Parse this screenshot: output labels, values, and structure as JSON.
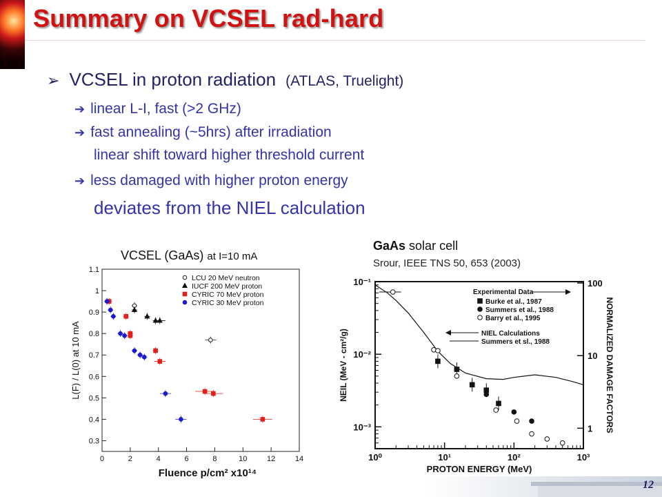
{
  "title": "Summary on VCSEL rad-hard",
  "bullets": {
    "main": "VCSEL in proton radiation",
    "main_paren": "(ATLAS, Truelight)",
    "arrow_icon": "double-right-arrow",
    "sub": [
      "linear L-I, fast (>2 GHz)",
      "fast annealing (~5hrs) after irradiation",
      "linear shift toward higher threshold current",
      "less damaged with higher proton energy",
      "deviates from the NIEL calculation"
    ]
  },
  "page_number": "12",
  "colors": {
    "title": "#d11212",
    "bullet_text": "#3333aa",
    "red_series": "#e0201a",
    "blue_series": "#1a1ad0"
  },
  "chart_data": [
    {
      "type": "scatter",
      "caption": "VCSEL (GaAs)",
      "caption_small": "at I=10 mA",
      "xlabel": "Fluence p/cm² x10¹⁴",
      "ylabel": "L(F) / L(0) at 10 mA",
      "xlim": [
        0,
        14
      ],
      "ylim": [
        0.25,
        1.1
      ],
      "xticks": [
        "0",
        "2",
        "4",
        "6",
        "8",
        "10",
        "12",
        "14"
      ],
      "yticks": [
        "0.3",
        "0.4",
        "0.5",
        "0.6",
        "0.7",
        "0.8",
        "0.9",
        "1",
        "1.1"
      ],
      "legend_position": "top-right",
      "series": [
        {
          "name": "LCU 20 MeV neutron",
          "marker": "open-circle",
          "points": [
            [
              2.3,
              0.93
            ],
            [
              7.7,
              0.77
            ]
          ]
        },
        {
          "name": "IUCF 200 MeV proton",
          "marker": "triangle",
          "points": [
            [
              2.3,
              0.91
            ],
            [
              3.2,
              0.88
            ],
            [
              3.8,
              0.86
            ],
            [
              4.1,
              0.86
            ]
          ]
        },
        {
          "name": "CYRIC 70 MeV proton",
          "marker": "square",
          "points": [
            [
              0.5,
              0.95
            ],
            [
              1.7,
              0.88
            ],
            [
              2.0,
              0.8
            ],
            [
              2.0,
              0.79
            ],
            [
              3.8,
              0.72
            ],
            [
              4.1,
              0.67
            ],
            [
              7.3,
              0.53
            ],
            [
              7.9,
              0.52
            ],
            [
              11.4,
              0.4
            ]
          ]
        },
        {
          "name": "CYRIC 30 MeV proton",
          "marker": "filled-circle",
          "points": [
            [
              0.35,
              0.95
            ],
            [
              0.6,
              0.91
            ],
            [
              0.8,
              0.88
            ],
            [
              1.3,
              0.8
            ],
            [
              1.6,
              0.79
            ],
            [
              2.3,
              0.72
            ],
            [
              2.7,
              0.7
            ],
            [
              3.0,
              0.69
            ],
            [
              4.5,
              0.52
            ],
            [
              5.6,
              0.4
            ]
          ]
        }
      ]
    },
    {
      "type": "scatter",
      "caption_bold": "GaAs",
      "caption_rest": "solar cell",
      "reference": "Srour, IEEE TNS 50, 653 (2003)",
      "xlabel": "PROTON ENERGY (MeV)",
      "ylabel": "NEIL (MeV - cm²/g)",
      "ylabel_right": "NORMALIZED DAMAGE FACTORS",
      "x_scale": "log",
      "y_scale": "log",
      "xlim": [
        1,
        1000
      ],
      "ylim": [
        0.0005,
        0.1
      ],
      "xticks": [
        "10⁰",
        "10¹",
        "10²",
        "10³"
      ],
      "yticks": [
        "10⁻³",
        "10⁻²",
        "10⁻¹"
      ],
      "right_ticks": [
        "1",
        "10",
        "100"
      ],
      "legend_title": "Experimental Data",
      "legend_arrows": [
        "NIEL Calculations",
        "Summers et sl., 1988"
      ],
      "series": [
        {
          "name": "Burke et al., 1987",
          "marker": "filled-square",
          "points": [
            [
              8,
              0.008
            ],
            [
              15,
              0.0062
            ],
            [
              25,
              0.0038
            ],
            [
              40,
              0.0032
            ],
            [
              60,
              0.0021
            ]
          ]
        },
        {
          "name": "Summers et al., 1988",
          "marker": "filled-circle",
          "points": [
            [
              40,
              0.0028
            ],
            [
              100,
              0.0016
            ],
            [
              180,
              0.0012
            ]
          ]
        },
        {
          "name": "Barry et al., 1995",
          "marker": "open-circle",
          "points": [
            [
              1.8,
              0.072
            ],
            [
              7,
              0.0115
            ],
            [
              8,
              0.0112
            ],
            [
              15,
              0.005
            ],
            [
              55,
              0.0017
            ],
            [
              110,
              0.0012
            ],
            [
              180,
              0.0008
            ],
            [
              300,
              0.00068
            ],
            [
              500,
              0.0006
            ]
          ]
        },
        {
          "name": "NIEL calculation",
          "type": "line",
          "points": [
            [
              1,
              0.09
            ],
            [
              1.5,
              0.07
            ],
            [
              2,
              0.055
            ],
            [
              3,
              0.037
            ],
            [
              5,
              0.02
            ],
            [
              8,
              0.011
            ],
            [
              12,
              0.0075
            ],
            [
              20,
              0.0055
            ],
            [
              40,
              0.0046
            ],
            [
              70,
              0.0045
            ],
            [
              100,
              0.0048
            ],
            [
              200,
              0.0052
            ],
            [
              400,
              0.0048
            ],
            [
              700,
              0.0042
            ],
            [
              1000,
              0.0038
            ]
          ]
        }
      ]
    }
  ]
}
